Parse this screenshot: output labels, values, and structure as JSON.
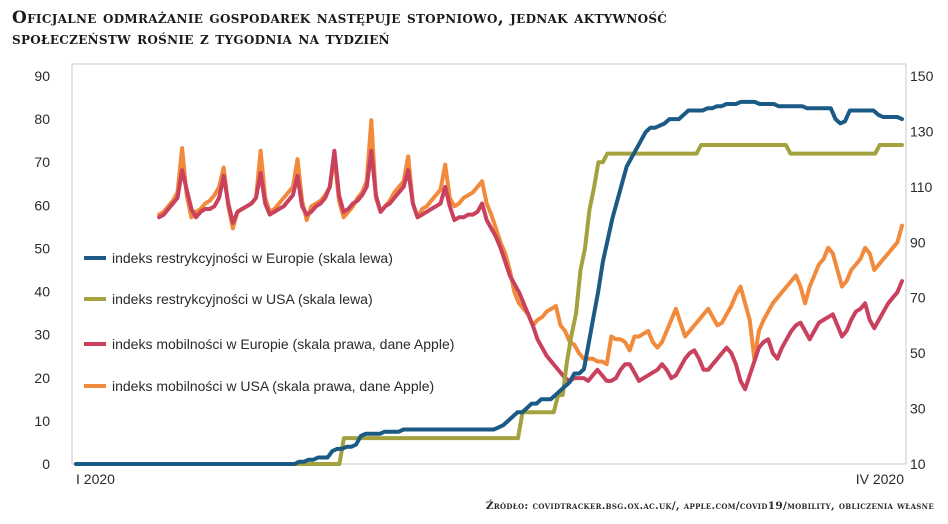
{
  "title_line1": "Oficjalne odmrażanie gospodarek następuje stopniowo, jednak aktywność",
  "title_line2": "społeczeństw rośnie z tygodnia na tydzień",
  "source": "Źródło: covidtracker.bsg.ox.ac.uk/, apple.com/covid19/mobility, obliczenia własne",
  "chart_data": {
    "type": "line",
    "x_start_label": "I 2020",
    "x_end_label": "IV 2020",
    "y_left": {
      "ticks": [
        0,
        10,
        20,
        30,
        40,
        50,
        60,
        70,
        80,
        90
      ],
      "ylim": [
        0,
        90
      ]
    },
    "y_right": {
      "ticks": [
        10,
        30,
        50,
        70,
        90,
        110,
        130,
        150
      ],
      "ylim": [
        10,
        150
      ]
    },
    "series": [
      {
        "name": "indeks restrykcyjności w Europie (skala lewa)",
        "axis": "left",
        "color": "#1a5a85",
        "values": [
          0,
          0,
          0,
          0,
          0,
          0,
          0,
          0,
          0,
          0,
          0,
          0,
          0,
          0,
          0,
          0,
          0,
          0,
          0,
          0,
          0,
          0,
          0,
          0,
          0,
          0,
          0,
          0,
          0,
          0,
          0,
          0,
          0,
          0,
          0,
          0,
          0,
          0,
          0,
          0,
          0,
          0,
          0,
          0,
          0,
          0,
          0,
          0.5,
          0.5,
          1,
          1,
          1.5,
          1.5,
          1.5,
          3,
          3.5,
          3.5,
          4,
          4,
          4.5,
          6.5,
          7,
          7,
          7,
          7,
          7.5,
          7.5,
          7.5,
          7.5,
          8,
          8,
          8,
          8,
          8,
          8,
          8,
          8,
          8,
          8,
          8,
          8,
          8,
          8,
          8,
          8,
          8,
          8,
          8,
          8,
          8.5,
          9,
          10,
          11,
          12,
          12,
          13,
          14,
          14,
          15,
          15,
          15,
          16,
          17,
          18,
          19,
          21,
          21,
          22,
          28,
          34,
          40,
          47,
          52,
          57,
          61,
          65,
          69,
          71,
          73,
          75,
          77,
          78,
          78,
          78.5,
          79,
          80,
          80,
          80,
          81,
          82,
          82,
          82,
          82,
          82.5,
          82.5,
          83,
          83,
          83.5,
          83.5,
          83.5,
          84,
          84,
          84,
          84,
          83.5,
          83.5,
          83.5,
          83.5,
          83,
          83,
          83,
          83,
          83,
          83,
          82.5,
          82.5,
          82.5,
          82.5,
          82.5,
          82.5,
          80,
          79,
          79.5,
          82,
          82,
          82,
          82,
          82,
          82,
          81,
          80.5,
          80.5,
          80.5,
          80.5,
          80
        ]
      },
      {
        "name": "indeks restrykcyjności w USA (skala lewa)",
        "axis": "left",
        "color": "#a3a23e",
        "values": [
          0,
          0,
          0,
          0,
          0,
          0,
          0,
          0,
          0,
          0,
          0,
          0,
          0,
          0,
          0,
          0,
          0,
          0,
          0,
          0,
          0,
          0,
          0,
          0,
          0,
          0,
          0,
          0,
          0,
          0,
          0,
          0,
          0,
          0,
          0,
          0,
          0,
          0,
          0,
          0,
          0,
          0,
          0,
          0,
          0,
          0,
          0,
          0,
          0,
          0,
          0,
          0,
          0,
          0,
          0,
          0,
          0,
          0,
          0,
          0,
          6,
          6,
          6,
          6,
          6,
          6,
          6,
          6,
          6,
          6,
          6,
          6,
          6,
          6,
          6,
          6,
          6,
          6,
          6,
          6,
          6,
          6,
          6,
          6,
          6,
          6,
          6,
          6,
          6,
          6,
          6,
          6,
          6,
          6,
          6,
          6,
          6,
          6,
          6,
          6,
          12,
          12,
          12,
          12,
          12,
          12,
          12,
          12,
          16,
          16,
          24,
          30,
          35,
          45,
          50,
          59,
          64,
          70,
          70,
          72,
          72,
          72,
          72,
          72,
          72,
          72,
          72,
          72,
          72,
          72,
          72,
          72,
          72,
          72,
          72,
          72,
          72,
          72,
          72,
          72,
          74,
          74,
          74,
          74,
          74,
          74,
          74,
          74,
          74,
          74,
          74,
          74,
          74,
          74,
          74,
          74,
          74,
          74,
          74,
          74,
          72,
          72,
          72,
          72,
          72,
          72,
          72,
          72,
          72,
          72,
          72,
          72,
          72,
          72,
          72,
          72,
          72,
          72,
          72,
          72,
          74,
          74,
          74,
          74,
          74,
          74
        ]
      },
      {
        "name": "indeks mobilności w Europie (skala prawa, dane Apple)",
        "axis": "right",
        "color": "#c9415d",
        "values": [
          null,
          null,
          null,
          null,
          null,
          null,
          null,
          null,
          null,
          null,
          null,
          null,
          null,
          null,
          null,
          null,
          null,
          null,
          99,
          100,
          102,
          104,
          106,
          116,
          109,
          102,
          99,
          101,
          102,
          102,
          103,
          106,
          114,
          104,
          97,
          101,
          102,
          103,
          104,
          106,
          115,
          104,
          100,
          101,
          102,
          103,
          105,
          107,
          114,
          103,
          100,
          101,
          103,
          104,
          106,
          110,
          123,
          107,
          101,
          102,
          104,
          105,
          107,
          110,
          123,
          107,
          101,
          103,
          104,
          106,
          108,
          110,
          116,
          104,
          99,
          100,
          101,
          102,
          103,
          104,
          110,
          103,
          98,
          99,
          99,
          100,
          100,
          101,
          104,
          98,
          95,
          92,
          88,
          83,
          78,
          75,
          72,
          68,
          64,
          60,
          55,
          52,
          49,
          47,
          45,
          43,
          41,
          40,
          41,
          41,
          41,
          40,
          42,
          44,
          42,
          40,
          40,
          41,
          44,
          46,
          46,
          43,
          40,
          41,
          42,
          43,
          44,
          46,
          44,
          41,
          42,
          45,
          48,
          50,
          51,
          48,
          44,
          44,
          46,
          48,
          50,
          52,
          50,
          46,
          40,
          37,
          42,
          47,
          52,
          54,
          55,
          50,
          48,
          52,
          55,
          58,
          60,
          61,
          58,
          55,
          58,
          61,
          62,
          63,
          64,
          60,
          56,
          58,
          62,
          65,
          66,
          68,
          62,
          59,
          62,
          65,
          68,
          70,
          72,
          76
        ]
      },
      {
        "name": "indeks mobilności w USA (skala prawa, dane Apple)",
        "axis": "right",
        "color": "#f28a3c",
        "values": [
          null,
          null,
          null,
          null,
          null,
          null,
          null,
          null,
          null,
          null,
          null,
          null,
          null,
          null,
          null,
          null,
          null,
          null,
          100,
          101,
          103,
          105,
          108,
          124,
          107,
          99,
          101,
          102,
          104,
          105,
          107,
          110,
          117,
          103,
          95,
          101,
          102,
          103,
          104,
          106,
          123,
          106,
          101,
          102,
          104,
          106,
          108,
          110,
          120,
          105,
          98,
          103,
          104,
          105,
          107,
          110,
          121,
          105,
          99,
          101,
          103,
          106,
          108,
          112,
          134,
          106,
          101,
          103,
          105,
          108,
          110,
          112,
          121,
          104,
          99,
          102,
          103,
          105,
          107,
          109,
          118,
          106,
          103,
          104,
          106,
          107,
          108,
          110,
          112,
          104,
          100,
          95,
          90,
          86,
          80,
          72,
          68,
          66,
          64,
          60,
          62,
          63,
          65,
          66,
          67,
          60,
          58,
          54,
          53,
          50,
          48,
          48,
          48,
          47,
          47,
          46,
          56,
          55,
          55,
          54,
          51,
          56,
          56,
          57,
          58,
          54,
          52,
          54,
          58,
          62,
          66,
          61,
          56,
          58,
          60,
          62,
          64,
          66,
          63,
          60,
          61,
          64,
          67,
          71,
          74,
          68,
          62,
          48,
          58,
          62,
          65,
          68,
          70,
          72,
          74,
          76,
          78,
          74,
          68,
          74,
          78,
          82,
          84,
          88,
          86,
          80,
          74,
          76,
          80,
          82,
          84,
          88,
          86,
          80,
          82,
          84,
          86,
          88,
          90,
          96
        ]
      }
    ]
  }
}
